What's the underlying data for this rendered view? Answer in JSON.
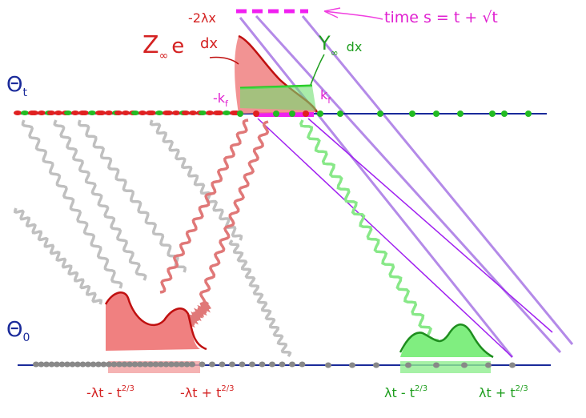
{
  "labels": {
    "time": "time s = t + √t",
    "z_main": "Z",
    "z_sub": "∞",
    "z_e": "e",
    "z_exp": "-2λx",
    "z_dx": "dx",
    "y_main": "Y",
    "y_sub": "∞",
    "y_dx": "dx",
    "theta_t": "Θ",
    "theta_t_sub": "t",
    "theta_0": "Θ",
    "theta_0_sub": "0",
    "neg_kf": "-k",
    "neg_kf_sub": "f",
    "kf": "k",
    "kf_sub": "f",
    "b1": "-λt - t",
    "b1_exp": "2/3",
    "b2": "-λt + t",
    "b2_exp": "2/3",
    "b3": "λt - t",
    "b3_exp": "2/3",
    "b4": "λt + t",
    "b4_exp": "2/3"
  }
}
